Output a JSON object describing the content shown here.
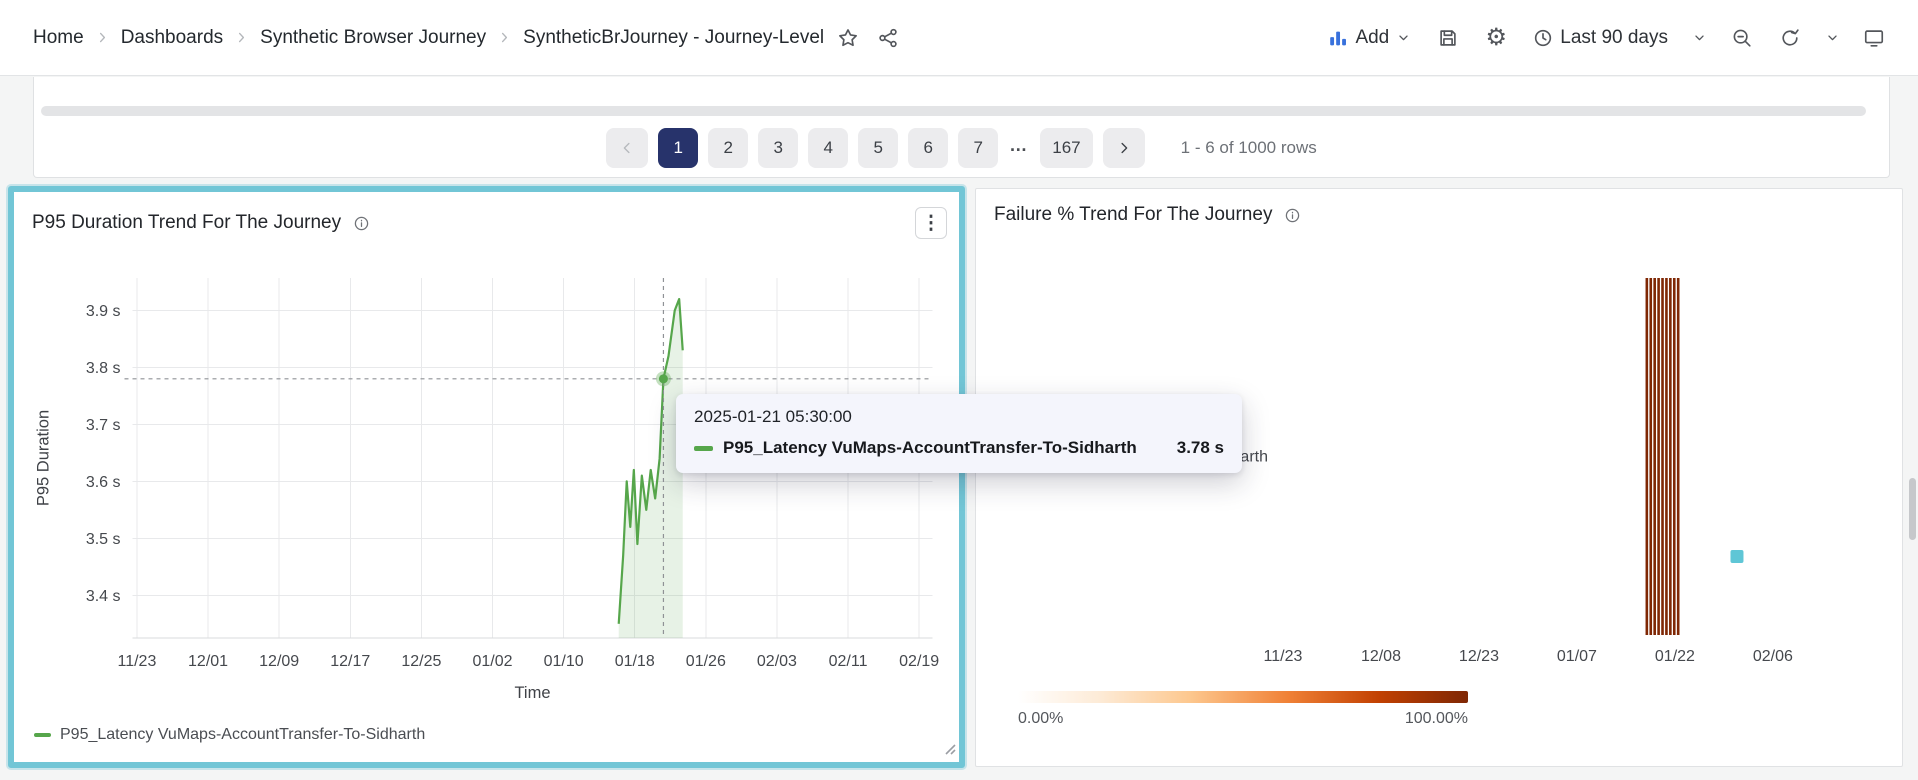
{
  "breadcrumb": {
    "items": [
      {
        "label": "Home"
      },
      {
        "label": "Dashboards"
      },
      {
        "label": "Synthetic Browser Journey"
      },
      {
        "label": "SyntheticBrJourney - Journey-Level"
      }
    ]
  },
  "header": {
    "add_label": "Add",
    "time_range": "Last 90 days"
  },
  "table_footer": {
    "pages": [
      "1",
      "2",
      "3",
      "4",
      "5",
      "6",
      "7"
    ],
    "current_page": "1",
    "ellipsis": "…",
    "last_page": "167",
    "rows_summary": "1 - 6 of 1000 rows"
  },
  "p95_panel": {
    "title": "P95 Duration Trend For The Journey",
    "legend_label": "P95_Latency VuMaps-AccountTransfer-To-Sidharth",
    "tooltip": {
      "timestamp": "2025-01-21 05:30:00",
      "series": "P95_Latency VuMaps-AccountTransfer-To-Sidharth",
      "value": "3.78 s"
    }
  },
  "failure_panel": {
    "title": "Failure % Trend For The Journey",
    "colorbar_min": "0.00%",
    "colorbar_max": "100.00%"
  },
  "colors": {
    "selection_teal": "#72c6d6",
    "series_green": "#56a64b",
    "selected_page_bg": "#27336b",
    "heat_dark": "#7f2704",
    "marker_cell_teal": "#5fc6d6"
  },
  "chart_data": [
    {
      "type": "line",
      "title": "P95 Duration Trend For The Journey",
      "xlabel": "Time",
      "ylabel": "P95 Duration",
      "x_ticks": [
        "11/23",
        "12/01",
        "12/09",
        "12/17",
        "12/25",
        "01/02",
        "01/10",
        "01/18",
        "01/26",
        "02/03",
        "02/11",
        "02/19"
      ],
      "tick_days": [
        0,
        8,
        16,
        24,
        32,
        40,
        48,
        56,
        64,
        72,
        80,
        88
      ],
      "x_domain_days": [
        -0.5,
        89.5
      ],
      "y_ticks": [
        "3.9 s",
        "3.8 s",
        "3.7 s",
        "3.6 s",
        "3.5 s",
        "3.4 s"
      ],
      "y_tick_values": [
        3.9,
        3.8,
        3.7,
        3.6,
        3.5,
        3.4
      ],
      "ylim": [
        3.325,
        3.957
      ],
      "grid": true,
      "legend_position": "bottom-left",
      "series": [
        {
          "name": "P95_Latency VuMaps-AccountTransfer-To-Sidharth",
          "color": "#56a64b",
          "fill_opacity": 0.14,
          "points": [
            {
              "x_day": 54.2,
              "y": 3.35
            },
            {
              "x_day": 54.7,
              "y": 3.47
            },
            {
              "x_day": 55.1,
              "y": 3.6
            },
            {
              "x_day": 55.5,
              "y": 3.52
            },
            {
              "x_day": 55.9,
              "y": 3.62
            },
            {
              "x_day": 56.3,
              "y": 3.49
            },
            {
              "x_day": 56.8,
              "y": 3.61
            },
            {
              "x_day": 57.3,
              "y": 3.55
            },
            {
              "x_day": 57.8,
              "y": 3.62
            },
            {
              "x_day": 58.3,
              "y": 3.57
            },
            {
              "x_day": 58.8,
              "y": 3.64
            },
            {
              "x_day": 59.23,
              "y": 3.78
            },
            {
              "x_day": 59.8,
              "y": 3.82
            },
            {
              "x_day": 60.5,
              "y": 3.9
            },
            {
              "x_day": 61.0,
              "y": 3.92
            },
            {
              "x_day": 61.4,
              "y": 3.83
            }
          ]
        }
      ],
      "highlight": {
        "x_day": 59.23,
        "y": 3.78,
        "timestamp": "2025-01-21 05:30:00",
        "value_label": "3.78 s"
      }
    },
    {
      "type": "heatmap",
      "title": "Failure % Trend For The Journey",
      "rows": [
        "P95_Latency VuMaps-AccountTransfer-To-Sidharth"
      ],
      "x_ticks": [
        "11/23",
        "12/08",
        "12/23",
        "01/07",
        "01/22",
        "02/06"
      ],
      "tick_days": [
        0,
        15,
        30,
        45,
        60,
        75
      ],
      "x_domain_days": [
        -0.15,
        89.25
      ],
      "cells": [
        {
          "day": 55.7,
          "failure_pct": 100
        },
        {
          "day": 56.3,
          "failure_pct": 100
        },
        {
          "day": 56.9,
          "failure_pct": 100
        },
        {
          "day": 57.5,
          "failure_pct": 100
        },
        {
          "day": 58.1,
          "failure_pct": 100
        },
        {
          "day": 58.7,
          "failure_pct": 100
        },
        {
          "day": 59.3,
          "failure_pct": 100
        },
        {
          "day": 59.9,
          "failure_pct": 100
        },
        {
          "day": 60.5,
          "failure_pct": 100
        }
      ],
      "marker_cell": {
        "day": 69.5,
        "y_frac": 0.78,
        "color": "#5fc6d6"
      },
      "colorbar": {
        "min_label": "0.00%",
        "max_label": "100.00%",
        "gradient": [
          "#ffffff",
          "#fdebd7",
          "#fdc88f",
          "#f08136",
          "#c24102",
          "#7f2704"
        ]
      }
    }
  ]
}
